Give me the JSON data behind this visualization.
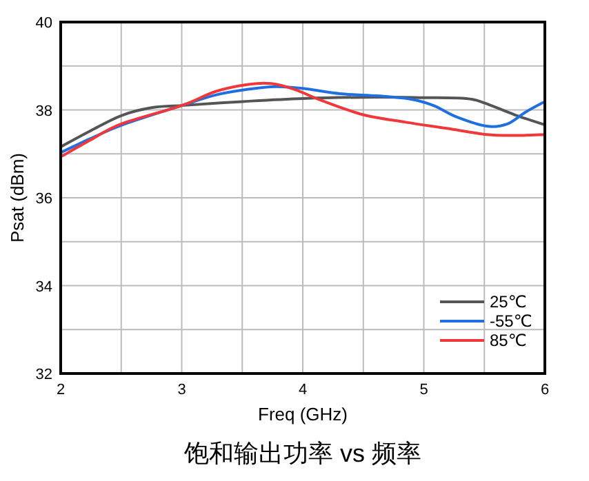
{
  "chart_data": {
    "type": "line",
    "title": "饱和输出功率 vs 频率",
    "xlabel": "Freq (GHz)",
    "ylabel": "Psat (dBm)",
    "xlim": [
      2,
      6
    ],
    "ylim": [
      32,
      40
    ],
    "xticks": [
      2,
      {
        "value": 2.5,
        "label": null
      },
      3,
      {
        "value": 3.5,
        "label": null
      },
      4,
      {
        "value": 4.5,
        "label": null
      },
      5,
      {
        "value": 5.5,
        "label": null
      },
      6
    ],
    "yticks": [
      32,
      {
        "value": 33,
        "label": null
      },
      34,
      {
        "value": 35,
        "label": null
      },
      36,
      {
        "value": 37,
        "label": null
      },
      38,
      {
        "value": 39,
        "label": null
      },
      40
    ],
    "grid": true,
    "legend": "bottom right",
    "marker": "none",
    "line_style": "solid",
    "series": [
      {
        "name": "25℃",
        "color": "#555555",
        "x": [
          2,
          2.25,
          2.5,
          2.75,
          3,
          3.5,
          4,
          4.6,
          5,
          5.35,
          5.5,
          5.75,
          6
        ],
        "values": [
          37.16,
          37.53,
          37.87,
          38.05,
          38.1,
          38.19,
          38.26,
          38.29,
          38.28,
          38.26,
          38.16,
          37.89,
          37.66
        ]
      },
      {
        "name": "-55℃",
        "color": "#1f6fe0",
        "x": [
          2,
          2.25,
          2.5,
          3,
          3.28,
          3.55,
          3.78,
          4,
          4.31,
          4.62,
          4.88,
          5.08,
          5.27,
          5.52,
          5.69,
          5.84,
          6
        ],
        "values": [
          37.03,
          37.35,
          37.65,
          38.1,
          38.34,
          38.47,
          38.53,
          38.49,
          38.37,
          38.32,
          38.25,
          38.1,
          37.84,
          37.63,
          37.68,
          37.95,
          38.19
        ]
      },
      {
        "name": "85℃",
        "color": "#f0383c",
        "x": [
          2,
          2.25,
          2.5,
          3,
          3.28,
          3.55,
          3.74,
          3.93,
          4.16,
          4.5,
          4.85,
          5.19,
          5.52,
          5.76,
          6
        ],
        "values": [
          36.93,
          37.32,
          37.68,
          38.1,
          38.42,
          38.58,
          38.6,
          38.47,
          38.21,
          37.89,
          37.72,
          37.58,
          37.44,
          37.42,
          37.44
        ]
      }
    ]
  }
}
